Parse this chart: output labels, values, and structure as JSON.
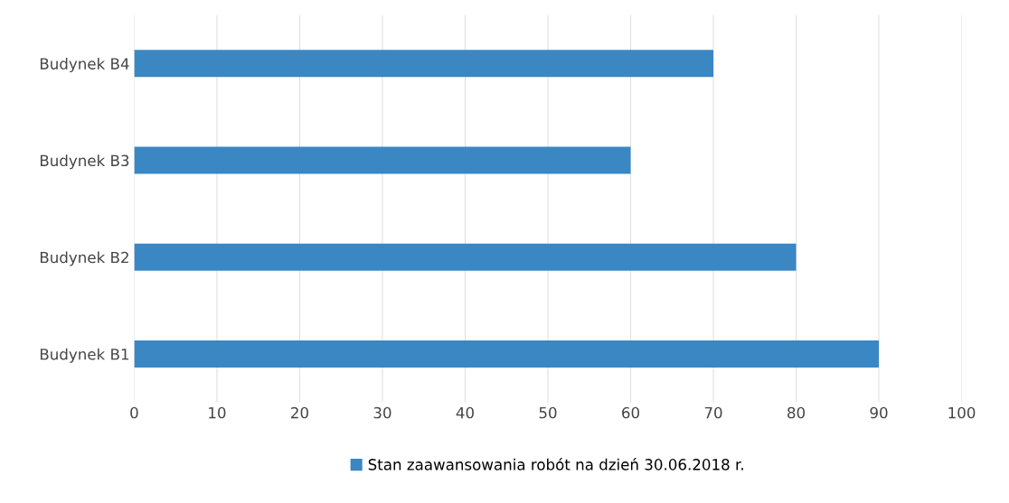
{
  "chart_data": {
    "type": "bar",
    "orientation": "horizontal",
    "categories": [
      "Budynek B4",
      "Budynek B3",
      "Budynek B2",
      "Budynek B1"
    ],
    "series": [
      {
        "name": "Stan zaawansowania robót na dzień 30.06.2018 r.",
        "color": "#3a87c4",
        "values": [
          70,
          60,
          80,
          90
        ]
      }
    ],
    "xlim": [
      0,
      100
    ],
    "xticks": [
      0,
      10,
      20,
      30,
      40,
      50,
      60,
      70,
      80,
      90,
      100
    ],
    "grid": "x",
    "legend": "bottom"
  }
}
